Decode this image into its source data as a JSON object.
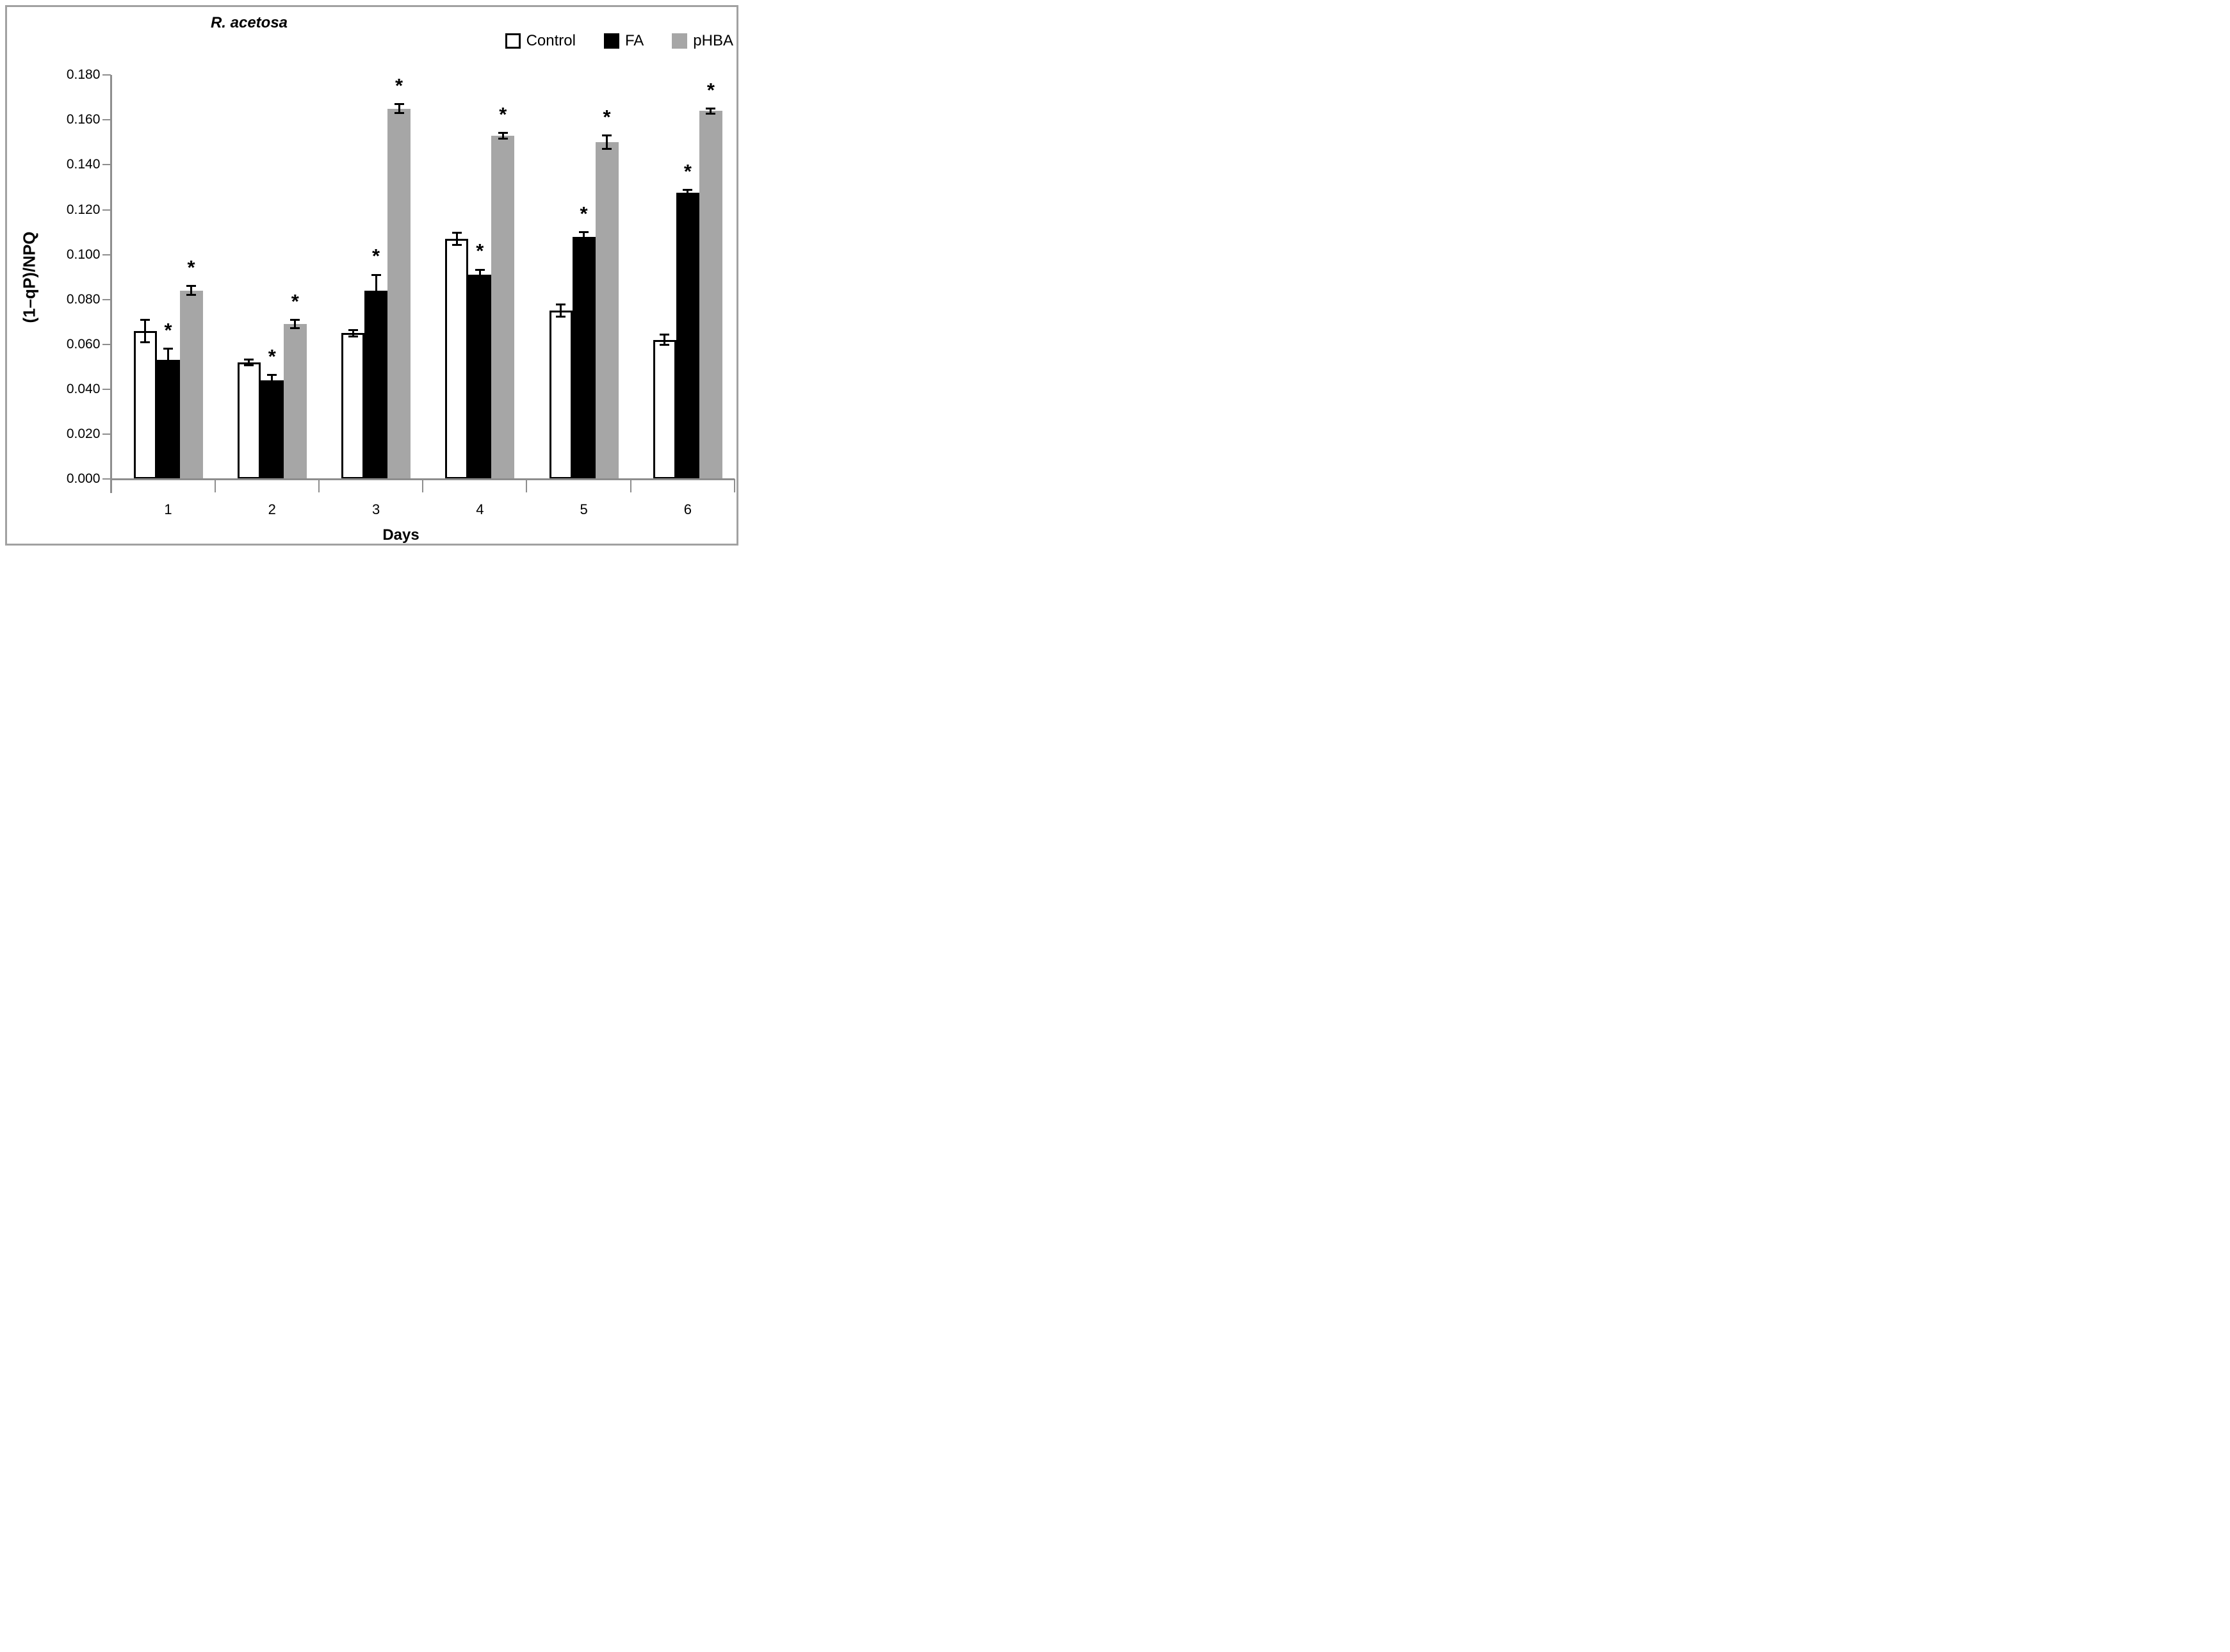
{
  "figure": {
    "title": "R. acetosa"
  },
  "colors": {
    "control_fill": "#ffffff",
    "control_border": "#000000",
    "fa_fill": "#000000",
    "phba_fill": "#a6a6a6",
    "axis_line": "#8e8e8e",
    "frame_border": "#a1a1a1",
    "text": "#000000"
  },
  "chart_data": {
    "type": "bar",
    "title": "R. acetosa",
    "xlabel": "Days",
    "ylabel": "(1–qP)/NPQ",
    "categories": [
      "1",
      "2",
      "3",
      "4",
      "5",
      "6"
    ],
    "ylim": [
      0,
      0.18
    ],
    "ytick_step": 0.02,
    "ytick_labels": [
      "0.000",
      "0.020",
      "0.040",
      "0.060",
      "0.080",
      "0.100",
      "0.120",
      "0.140",
      "0.160",
      "0.180"
    ],
    "grid": false,
    "legend_position": "top-right",
    "error_bars": true,
    "significance_marker": "*",
    "series": [
      {
        "name": "Control",
        "values": [
          0.066,
          0.052,
          0.065,
          0.107,
          0.075,
          0.062
        ],
        "errors": [
          0.005,
          0.0013,
          0.0014,
          0.0026,
          0.0027,
          0.0023
        ],
        "significant": [
          false,
          false,
          false,
          false,
          false,
          false
        ]
      },
      {
        "name": "FA",
        "values": [
          0.053,
          0.044,
          0.084,
          0.091,
          0.108,
          0.1275
        ],
        "errors": [
          0.005,
          0.0023,
          0.007,
          0.0023,
          0.002,
          0.0013
        ],
        "significant": [
          true,
          true,
          true,
          true,
          true,
          true
        ]
      },
      {
        "name": "pHBA",
        "values": [
          0.084,
          0.069,
          0.165,
          0.153,
          0.15,
          0.164
        ],
        "errors": [
          0.002,
          0.0019,
          0.002,
          0.0012,
          0.003,
          0.0011
        ],
        "significant": [
          true,
          true,
          true,
          true,
          true,
          true
        ]
      }
    ]
  }
}
